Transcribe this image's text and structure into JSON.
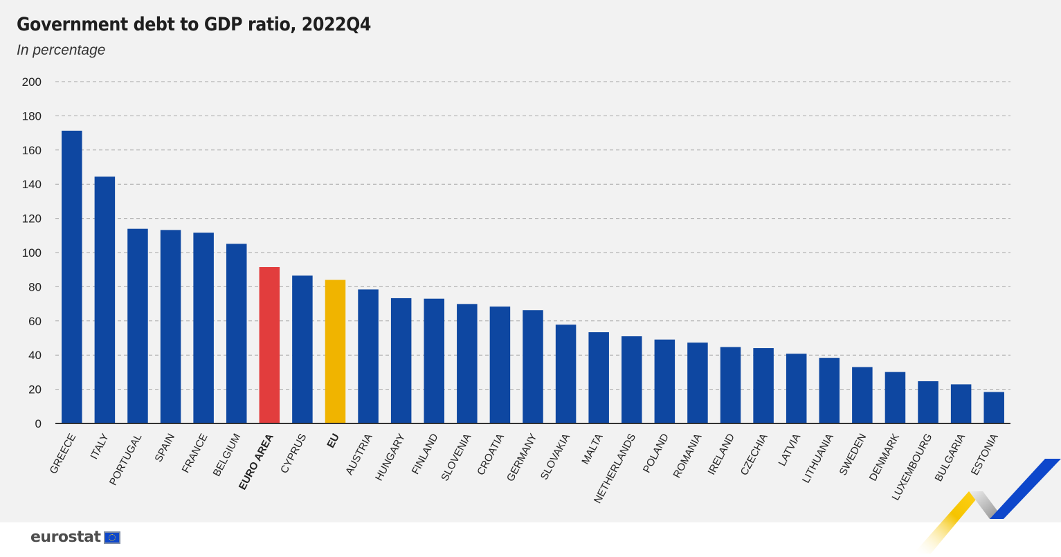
{
  "header": {
    "title": "Government debt to GDP ratio, 2022Q4",
    "subtitle": "In percentage"
  },
  "footer": {
    "brand": "eurostat"
  },
  "colors": {
    "country": "#0e47a1",
    "euro_area": "#e23d3d",
    "eu": "#f0b400",
    "grid": "#a6a6a6",
    "axis": "#333333"
  },
  "chart_data": {
    "type": "bar",
    "title": "Government debt to GDP ratio, 2022Q4",
    "subtitle": "In percentage",
    "xlabel": "",
    "ylabel": "",
    "ylim": [
      0,
      200
    ],
    "yticks": [
      0,
      20,
      40,
      60,
      80,
      100,
      120,
      140,
      160,
      180,
      200
    ],
    "grid": true,
    "legend": "none",
    "categories": [
      "GREECE",
      "ITALY",
      "PORTUGAL",
      "SPAIN",
      "FRANCE",
      "BELGIUM",
      "EURO AREA",
      "CYPRUS",
      "EU",
      "AUSTRIA",
      "HUNGARY",
      "FINLAND",
      "SLOVENIA",
      "CROATIA",
      "GERMANY",
      "SLOVAKIA",
      "MALTA",
      "NETHERLANDS",
      "POLAND",
      "ROMANIA",
      "IRELAND",
      "CZECHIA",
      "LATVIA",
      "LITHUANIA",
      "SWEDEN",
      "DENMARK",
      "LUXEMBOURG",
      "BULGARIA",
      "ESTONIA"
    ],
    "values": [
      171.3,
      144.4,
      113.9,
      113.2,
      111.6,
      105.1,
      91.5,
      86.5,
      84.0,
      78.4,
      73.3,
      73.0,
      69.9,
      68.4,
      66.3,
      57.8,
      53.4,
      51.0,
      49.1,
      47.3,
      44.7,
      44.1,
      40.8,
      38.4,
      33.0,
      30.1,
      24.7,
      22.9,
      18.4
    ],
    "highlight": {
      "EURO AREA": "euro_area",
      "EU": "eu"
    }
  }
}
